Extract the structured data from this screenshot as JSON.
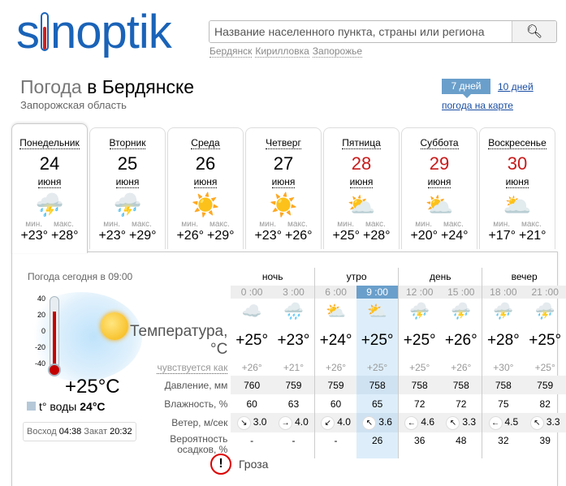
{
  "logo": "sinoptik",
  "search": {
    "placeholder": "Название населенного пункта, страны или региона",
    "quick": [
      "Бердянск",
      "Кирилловка",
      "Запорожье"
    ]
  },
  "header": {
    "title_prefix": "Погода",
    "title_city": "в Бердянске",
    "region": "Запорожская область",
    "tab_7": "7 дней",
    "tab_10": "10 дней",
    "map_link": "погода на карте"
  },
  "days": [
    {
      "name": "Понедельник",
      "date": "24",
      "month": "июня",
      "icon": "sun-cloud-thunder-icon",
      "min": "+23°",
      "max": "+28°",
      "weekend": false
    },
    {
      "name": "Вторник",
      "date": "25",
      "month": "июня",
      "icon": "sun-cloud-thunder-icon",
      "min": "+23°",
      "max": "+29°",
      "weekend": false
    },
    {
      "name": "Среда",
      "date": "26",
      "month": "июня",
      "icon": "sun-icon",
      "min": "+26°",
      "max": "+29°",
      "weekend": false
    },
    {
      "name": "Четверг",
      "date": "27",
      "month": "июня",
      "icon": "sun-icon",
      "min": "+23°",
      "max": "+26°",
      "weekend": false
    },
    {
      "name": "Пятница",
      "date": "28",
      "month": "июня",
      "icon": "sun-cloud-icon",
      "min": "+25°",
      "max": "+28°",
      "weekend": true
    },
    {
      "name": "Суббота",
      "date": "29",
      "month": "июня",
      "icon": "sun-cloud-icon",
      "min": "+20°",
      "max": "+24°",
      "weekend": true
    },
    {
      "name": "Воскресенье",
      "date": "30",
      "month": "июня",
      "icon": "sun-clouds-icon",
      "min": "+17°",
      "max": "+21°",
      "weekend": true
    }
  ],
  "min_label": "мин.",
  "max_label": "макс.",
  "today": {
    "label": "Погода сегодня в 09:00",
    "scale": [
      "40",
      "20",
      "0",
      "-20",
      "-40"
    ],
    "temp": "+25°C",
    "water_label": "t° воды",
    "water": "24°C",
    "sunrise_label": "Восход",
    "sunrise": "04:38",
    "sunset_label": "Закат",
    "sunset": "20:32"
  },
  "table": {
    "periods": [
      "ночь",
      "утро",
      "день",
      "вечер"
    ],
    "times": [
      "0 :00",
      "3 :00",
      "6 :00",
      "9 :00",
      "12 :00",
      "15 :00",
      "18 :00",
      "21 :00"
    ],
    "icons": [
      "cloudy-night-icon",
      "cloud-rain-night-icon",
      "sun-cloud-icon",
      "sun-cloud-icon",
      "sun-cloud-thunder-icon",
      "sun-cloud-thunder-icon",
      "sun-cloud-thunder-icon",
      "night-cloud-thunder-icon"
    ],
    "labels": {
      "temp": "Температура, °C",
      "feels": "чувствуется как",
      "pressure": "Давление, мм",
      "humidity": "Влажность, %",
      "wind": "Ветер, м/сек",
      "precip1": "Вероятность",
      "precip2": "осадков, %"
    },
    "temp": [
      "+25°",
      "+23°",
      "+24°",
      "+25°",
      "+25°",
      "+26°",
      "+28°",
      "+25°"
    ],
    "feels": [
      "+26°",
      "+21°",
      "+26°",
      "+25°",
      "+25°",
      "+26°",
      "+30°",
      "+25°"
    ],
    "pressure": [
      "760",
      "759",
      "759",
      "758",
      "758",
      "758",
      "758",
      "759"
    ],
    "humidity": [
      "60",
      "63",
      "60",
      "65",
      "72",
      "72",
      "75",
      "82"
    ],
    "wind_dir": [
      "↘",
      "→",
      "↙",
      "↖",
      "←",
      "↖",
      "←",
      "↖"
    ],
    "wind": [
      "3.0",
      "4.0",
      "4.0",
      "3.6",
      "4.6",
      "3.3",
      "4.5",
      "3.3"
    ],
    "precip": [
      "-",
      "-",
      "-",
      "26",
      "36",
      "48",
      "32",
      "39"
    ]
  },
  "warning": "Гроза"
}
